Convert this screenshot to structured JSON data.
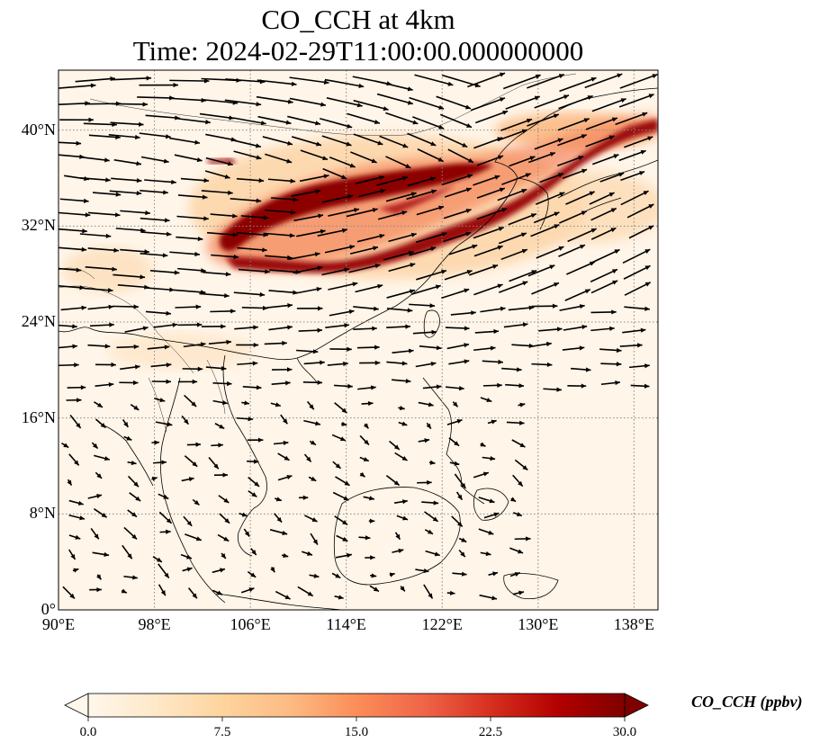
{
  "title": {
    "line1": "CO_CCH at 4km",
    "line2": "Time: 2024-02-29T11:00:00.000000000"
  },
  "map": {
    "lon_range": [
      90,
      140
    ],
    "lat_range": [
      0,
      45
    ],
    "lon_ticks": [
      "90°E",
      "98°E",
      "106°E",
      "114°E",
      "122°E",
      "130°E",
      "138°E"
    ],
    "lat_ticks": [
      "0°",
      "8°N",
      "16°N",
      "24°N",
      "32°N",
      "40°N"
    ],
    "gridlines": true,
    "field": "CO_CCH",
    "plume_color": "#7f0000",
    "wind_vectors": true
  },
  "colorbar": {
    "label": "CO_CCH (ppbv)",
    "min": 0.0,
    "max": 30.0,
    "extend": "both",
    "ticks": [
      "0.0",
      "7.5",
      "15.0",
      "22.5",
      "30.0"
    ],
    "colors": [
      "#fff7ec",
      "#fee8c8",
      "#fdd49e",
      "#fdbb84",
      "#fc8d59",
      "#ef6548",
      "#d7301f",
      "#b30000",
      "#7f0000"
    ]
  }
}
